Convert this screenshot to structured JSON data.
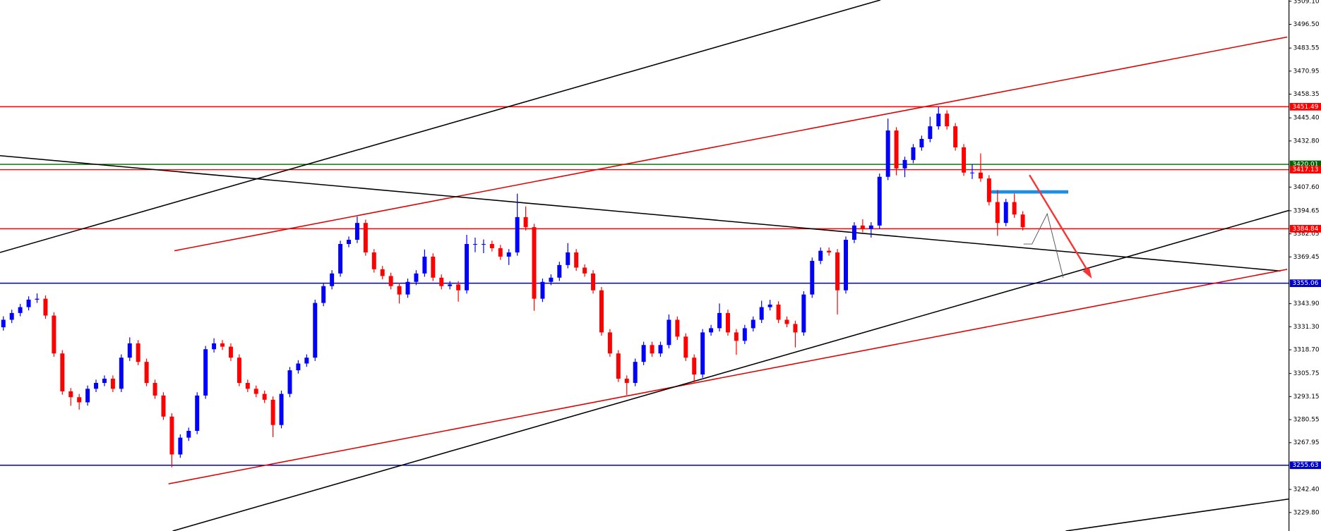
{
  "chart_data": {
    "type": "candlestick",
    "up_color": "#0000ff",
    "down_color": "#ff0000",
    "ylim": [
      3219.7,
      3509.8
    ],
    "yticks": [
      {
        "value": 3509.1,
        "label": "3509.10"
      },
      {
        "value": 3496.5,
        "label": "3496.50"
      },
      {
        "value": 3483.55,
        "label": "3483.55"
      },
      {
        "value": 3470.95,
        "label": "3470.95"
      },
      {
        "value": 3458.35,
        "label": "3458.35"
      },
      {
        "value": 3445.4,
        "label": "3445.40"
      },
      {
        "value": 3432.8,
        "label": "3432.80"
      },
      {
        "value": 3407.6,
        "label": "3407.60"
      },
      {
        "value": 3394.65,
        "label": "3394.65"
      },
      {
        "value": 3382.05,
        "label": "3382.05"
      },
      {
        "value": 3369.45,
        "label": "3369.45"
      },
      {
        "value": 3343.9,
        "label": "3343.90"
      },
      {
        "value": 3331.3,
        "label": "3331.30"
      },
      {
        "value": 3318.7,
        "label": "3318.70"
      },
      {
        "value": 3305.75,
        "label": "3305.75"
      },
      {
        "value": 3293.15,
        "label": "3293.15"
      },
      {
        "value": 3280.55,
        "label": "3280.55"
      },
      {
        "value": 3267.95,
        "label": "3267.95"
      },
      {
        "value": 3242.4,
        "label": "3242.40"
      },
      {
        "value": 3229.8,
        "label": "3229.80"
      }
    ],
    "levels": [
      {
        "value": 3451.49,
        "color": "#ff0000"
      },
      {
        "value": 3420.01,
        "color": "#006400"
      },
      {
        "value": 3417.13,
        "color": "#ff0000"
      },
      {
        "value": 3384.84,
        "color": "#ff0000"
      },
      {
        "value": 3355.06,
        "color": "#0000cd"
      },
      {
        "value": 3255.63,
        "color": "#0000cd"
      }
    ],
    "open": [
      3331.0,
      3335.1,
      3338.8,
      3342.0,
      3346.1,
      3346.6,
      3337.4,
      3316.7,
      3296.0,
      3292.8,
      3290.0,
      3297.4,
      3300.6,
      3302.9,
      3297.4,
      3314.4,
      3322.2,
      3312.1,
      3300.6,
      3293.7,
      3282.2,
      3261.5,
      3270.7,
      3274.4,
      3293.7,
      3319.0,
      3322.2,
      3320.4,
      3314.4,
      3300.6,
      3297.4,
      3294.6,
      3291.4,
      3277.6,
      3294.6,
      3307.5,
      3311.2,
      3314.4,
      3344.3,
      3353.5,
      3360.4,
      3376.5,
      3378.8,
      3388.0,
      3371.9,
      3362.7,
      3359.0,
      3353.5,
      3348.9,
      3355.8,
      3360.4,
      3369.6,
      3358.1,
      3353.5,
      3354.4,
      3351.2,
      3376.5,
      3376.5,
      3376.5,
      3374.2,
      3369.6,
      3371.9,
      3391.2,
      3385.7,
      3346.6,
      3355.8,
      3358.1,
      3365.0,
      3371.9,
      3363.6,
      3360.4,
      3351.2,
      3328.2,
      3316.7,
      3302.9,
      3300.6,
      3312.1,
      3321.3,
      3316.7,
      3321.3,
      3335.1,
      3325.9,
      3314.4,
      3305.2,
      3328.2,
      3330.5,
      3338.8,
      3328.2,
      3323.6,
      3330.5,
      3335.1,
      3342.0,
      3343.4,
      3335.1,
      3332.8,
      3328.2,
      3348.9,
      3367.3,
      3372.8,
      3371.9,
      3351.2,
      3378.8,
      3386.6,
      3384.7,
      3386.6,
      3413.2,
      3438.5,
      3417.8,
      3422.4,
      3429.3,
      3433.9,
      3440.8,
      3447.7,
      3440.8,
      3429.3,
      3415.5,
      3415.5,
      3412.3,
      3399.4,
      3388.0,
      3399.4,
      3392.6
    ],
    "high": [
      3337.0,
      3340.6,
      3343.8,
      3347.9,
      3349.5,
      3348.4,
      3339.2,
      3318.5,
      3297.8,
      3294.6,
      3299.2,
      3302.4,
      3304.7,
      3304.7,
      3316.2,
      3325.5,
      3324.0,
      3313.9,
      3302.4,
      3295.5,
      3284.0,
      3272.5,
      3276.2,
      3295.5,
      3320.8,
      3325.0,
      3324.0,
      3322.2,
      3316.2,
      3302.4,
      3299.2,
      3296.4,
      3293.2,
      3296.4,
      3309.3,
      3313.0,
      3316.2,
      3346.1,
      3355.3,
      3362.2,
      3378.3,
      3380.6,
      3391.5,
      3389.8,
      3373.7,
      3364.5,
      3360.8,
      3355.3,
      3357.6,
      3362.2,
      3373.5,
      3371.4,
      3359.9,
      3356.2,
      3356.2,
      3381.5,
      3380.0,
      3379.0,
      3378.3,
      3376.0,
      3373.7,
      3404.0,
      3397.0,
      3387.5,
      3357.6,
      3359.9,
      3366.8,
      3377.0,
      3373.7,
      3365.4,
      3362.2,
      3353.0,
      3330.0,
      3318.5,
      3304.7,
      3313.9,
      3323.1,
      3323.1,
      3323.1,
      3338.0,
      3336.9,
      3327.7,
      3316.2,
      3330.0,
      3332.3,
      3344.0,
      3340.6,
      3330.0,
      3332.3,
      3336.9,
      3345.5,
      3346.0,
      3345.2,
      3336.9,
      3334.6,
      3350.7,
      3369.1,
      3374.6,
      3374.6,
      3373.7,
      3380.6,
      3388.4,
      3390.0,
      3388.4,
      3415.0,
      3445.0,
      3440.3,
      3424.2,
      3431.1,
      3435.7,
      3446.0,
      3451.5,
      3449.5,
      3442.6,
      3431.1,
      3420.0,
      3426.0,
      3414.1,
      3406.0,
      3401.2,
      3404.0,
      3394.4
    ],
    "low": [
      3329.2,
      3333.3,
      3337.0,
      3340.2,
      3344.3,
      3335.6,
      3314.9,
      3294.2,
      3288.1,
      3286.0,
      3288.2,
      3295.6,
      3298.8,
      3295.6,
      3295.6,
      3312.6,
      3310.3,
      3298.8,
      3291.9,
      3280.4,
      3254.5,
      3259.7,
      3268.9,
      3272.6,
      3291.9,
      3317.2,
      3318.6,
      3312.6,
      3298.8,
      3295.6,
      3292.8,
      3289.6,
      3271.0,
      3275.8,
      3292.8,
      3305.7,
      3309.4,
      3312.6,
      3342.5,
      3351.7,
      3358.6,
      3374.7,
      3377.0,
      3370.1,
      3360.9,
      3357.2,
      3351.7,
      3344.0,
      3347.1,
      3354.0,
      3358.6,
      3356.3,
      3351.7,
      3351.7,
      3345.0,
      3349.4,
      3372.0,
      3371.5,
      3372.4,
      3367.8,
      3365.0,
      3370.1,
      3383.9,
      3340.0,
      3344.8,
      3354.0,
      3356.3,
      3363.2,
      3361.8,
      3358.6,
      3349.4,
      3326.4,
      3314.9,
      3301.1,
      3294.0,
      3298.8,
      3310.3,
      3314.9,
      3314.9,
      3319.5,
      3324.1,
      3312.6,
      3301.0,
      3303.4,
      3326.4,
      3328.7,
      3326.4,
      3316.0,
      3321.8,
      3328.7,
      3333.3,
      3340.2,
      3333.3,
      3331.0,
      3320.0,
      3326.4,
      3347.1,
      3365.5,
      3370.1,
      3338.0,
      3349.4,
      3377.0,
      3382.9,
      3380.0,
      3384.8,
      3411.4,
      3414.0,
      3413.0,
      3420.6,
      3427.5,
      3432.1,
      3439.0,
      3439.0,
      3427.5,
      3413.7,
      3412.0,
      3410.5,
      3397.6,
      3381.0,
      3386.2,
      3390.8,
      3383.9
    ],
    "close": [
      3335.1,
      3338.8,
      3342.0,
      3346.1,
      3346.6,
      3337.4,
      3316.7,
      3296.0,
      3292.8,
      3290.0,
      3297.4,
      3300.6,
      3302.9,
      3297.4,
      3314.4,
      3322.2,
      3312.1,
      3300.6,
      3293.7,
      3282.2,
      3261.5,
      3270.7,
      3274.4,
      3293.7,
      3319.0,
      3322.2,
      3320.4,
      3314.4,
      3300.6,
      3297.4,
      3294.6,
      3291.4,
      3277.6,
      3294.6,
      3307.5,
      3311.2,
      3314.4,
      3344.3,
      3353.5,
      3360.4,
      3376.5,
      3378.8,
      3388.0,
      3371.9,
      3362.7,
      3359.0,
      3353.5,
      3348.9,
      3355.8,
      3360.4,
      3369.6,
      3358.1,
      3353.5,
      3354.4,
      3351.2,
      3376.5,
      3376.5,
      3376.5,
      3374.2,
      3369.6,
      3371.9,
      3391.2,
      3385.7,
      3346.6,
      3355.8,
      3358.1,
      3365.0,
      3371.9,
      3363.6,
      3360.4,
      3351.2,
      3328.2,
      3316.7,
      3302.9,
      3300.6,
      3312.1,
      3321.3,
      3316.7,
      3321.3,
      3335.1,
      3325.9,
      3314.4,
      3305.2,
      3328.2,
      3330.5,
      3338.8,
      3328.2,
      3323.6,
      3330.5,
      3335.1,
      3342.0,
      3343.4,
      3335.1,
      3332.8,
      3328.2,
      3348.9,
      3367.3,
      3372.8,
      3371.9,
      3351.2,
      3378.8,
      3386.6,
      3384.7,
      3386.6,
      3413.2,
      3438.5,
      3417.8,
      3422.4,
      3429.3,
      3433.9,
      3440.8,
      3447.7,
      3440.8,
      3429.3,
      3415.5,
      3415.5,
      3412.3,
      3399.4,
      3388.0,
      3399.4,
      3392.6,
      3385.7
    ]
  }
}
